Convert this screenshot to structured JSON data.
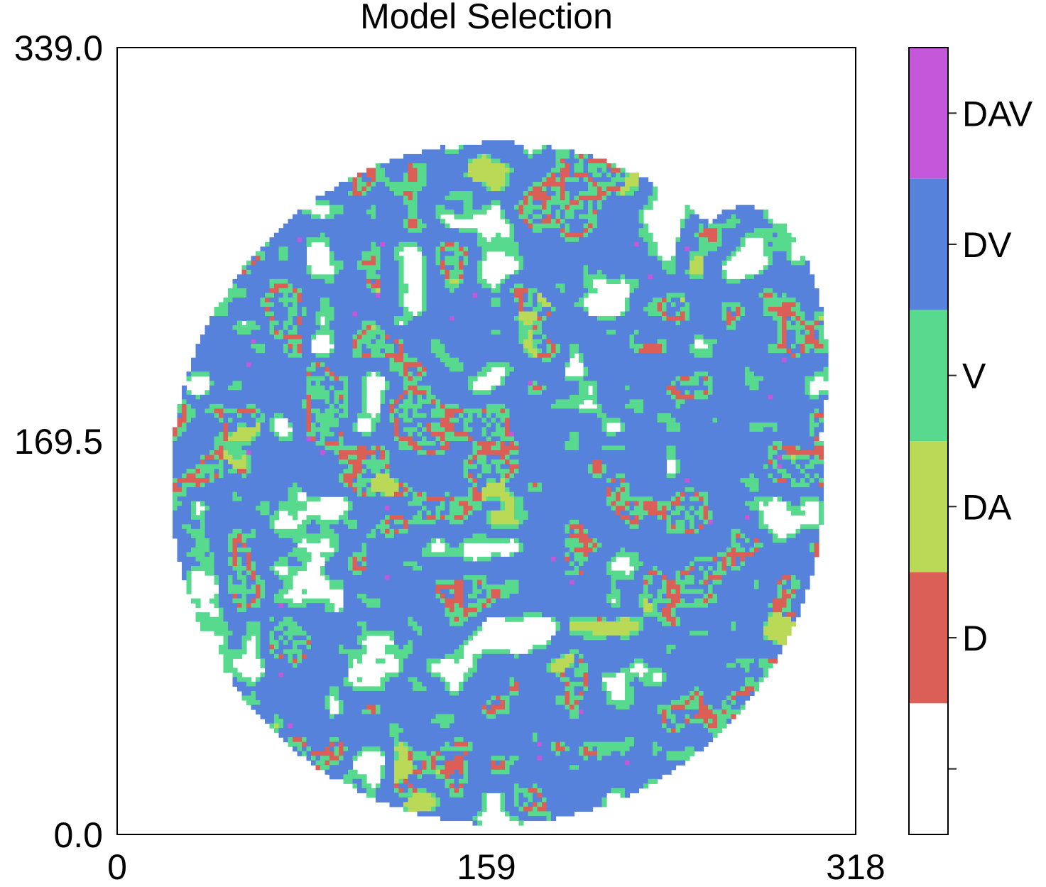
{
  "chart_data": {
    "type": "heatmap",
    "title": "Model Selection",
    "xlabel": "",
    "ylabel": "",
    "xlim": [
      0,
      318
    ],
    "ylim": [
      0.0,
      339.0
    ],
    "x_ticks": [
      "0",
      "159",
      "318"
    ],
    "y_ticks": [
      "0.0",
      "169.5",
      "339.0"
    ],
    "grid": false,
    "colorbar": {
      "position": "right",
      "categories": [
        {
          "label": "",
          "color": "#ffffff"
        },
        {
          "label": "D",
          "color": "#db5f57"
        },
        {
          "label": "DA",
          "color": "#b9d957"
        },
        {
          "label": "V",
          "color": "#57d98e"
        },
        {
          "label": "DV",
          "color": "#5682db"
        },
        {
          "label": "DAV",
          "color": "#c557db"
        }
      ]
    },
    "mask_shape": "rounded tissue section with a lobe extending toward the right edge"
  }
}
